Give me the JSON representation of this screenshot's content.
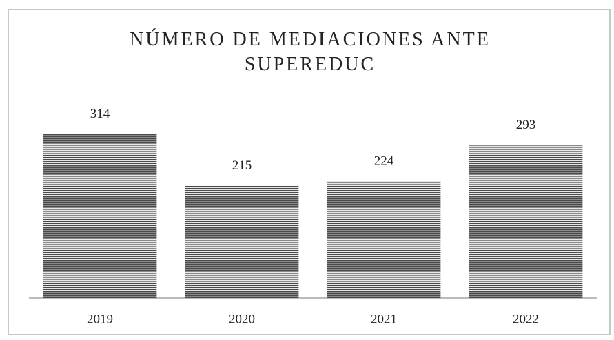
{
  "chart_data": {
    "type": "bar",
    "title": "NÚMERO DE MEDIACIONES ANTE SUPEREDUC",
    "categories": [
      "2019",
      "2020",
      "2021",
      "2022"
    ],
    "values": [
      314,
      215,
      224,
      293
    ],
    "color": "#4a4a4a",
    "ylim": [
      0,
      340
    ]
  }
}
